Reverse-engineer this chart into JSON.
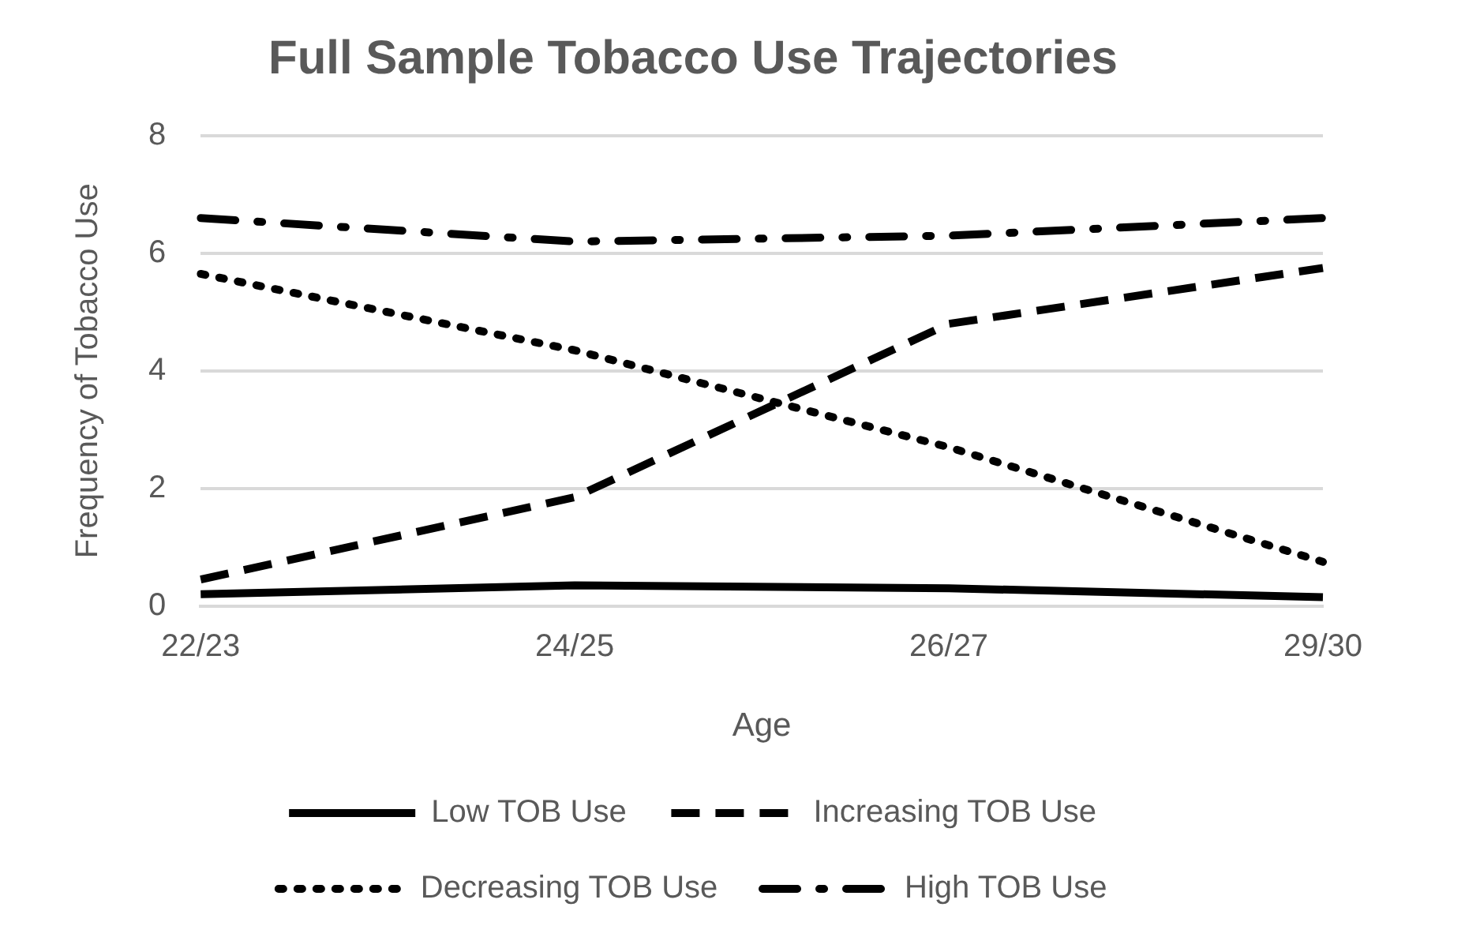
{
  "chart_data": {
    "type": "line",
    "title": "Full Sample Tobacco Use Trajectories",
    "xlabel": "Age",
    "ylabel": "Frequency of Tobacco Use",
    "categories": [
      "22/23",
      "24/25",
      "26/27",
      "29/30"
    ],
    "series": [
      {
        "name": "Low TOB Use",
        "color": "#000000",
        "line_style": "solid",
        "values": [
          0.2,
          0.35,
          0.3,
          0.15
        ]
      },
      {
        "name": "Increasing TOB Use",
        "color": "#000000",
        "line_style": "dashed",
        "values": [
          0.45,
          1.85,
          4.8,
          5.75
        ]
      },
      {
        "name": "Decreasing TOB Use",
        "color": "#000000",
        "line_style": "dotted",
        "values": [
          5.65,
          4.35,
          2.7,
          0.75
        ]
      },
      {
        "name": "High TOB Use",
        "color": "#000000",
        "line_style": "dashdot",
        "values": [
          6.6,
          6.2,
          6.3,
          6.6
        ]
      }
    ],
    "ylim": [
      0,
      8
    ],
    "yticks": [
      0,
      2,
      4,
      6,
      8
    ],
    "grid": "y",
    "legend": "bottom",
    "marker": "none"
  }
}
